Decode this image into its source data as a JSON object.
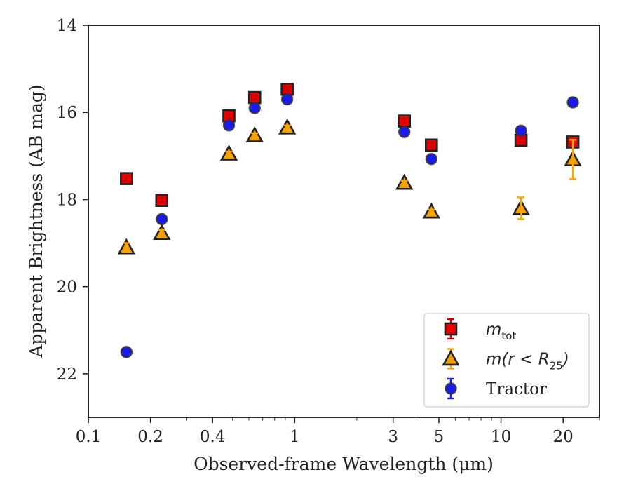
{
  "chart_data": {
    "type": "scatter",
    "title": "",
    "xlabel": "Observed-frame Wavelength (μm)",
    "ylabel": "Apparent Brightness (AB mag)",
    "xscale": "log",
    "xlim": [
      0.1,
      30
    ],
    "ylim": [
      23,
      14
    ],
    "y_inverted": true,
    "x_ticks": [
      {
        "value": 0.1,
        "label": "0.1"
      },
      {
        "value": 0.2,
        "label": "0.2"
      },
      {
        "value": 0.4,
        "label": "0.4"
      },
      {
        "value": 1,
        "label": "1"
      },
      {
        "value": 3,
        "label": "3"
      },
      {
        "value": 5,
        "label": "5"
      },
      {
        "value": 10,
        "label": "10"
      },
      {
        "value": 20,
        "label": "20"
      }
    ],
    "y_ticks": [
      {
        "value": 14,
        "label": "14"
      },
      {
        "value": 16,
        "label": "16"
      },
      {
        "value": 18,
        "label": "18"
      },
      {
        "value": 20,
        "label": "20"
      },
      {
        "value": 22,
        "label": "22"
      }
    ],
    "grid": false,
    "legend_position": "lower-right",
    "series": [
      {
        "name": "m_tot",
        "marker": "square",
        "color": "#ee0000",
        "edgecolor": "#222222",
        "errcolor": "#cc0000",
        "points": [
          {
            "x": 0.153,
            "y": 17.52,
            "err": 0.05
          },
          {
            "x": 0.227,
            "y": 18.02,
            "err": 0.05
          },
          {
            "x": 0.48,
            "y": 16.08,
            "err": 0.05
          },
          {
            "x": 0.64,
            "y": 15.66,
            "err": 0.05
          },
          {
            "x": 0.92,
            "y": 15.47,
            "err": 0.05
          },
          {
            "x": 3.4,
            "y": 16.2,
            "err": 0.05
          },
          {
            "x": 4.6,
            "y": 16.75,
            "err": 0.05
          },
          {
            "x": 12.5,
            "y": 16.64,
            "err": 0.05
          },
          {
            "x": 22.3,
            "y": 16.68,
            "err": 0.05
          }
        ]
      },
      {
        "name": "m(r < R_25)",
        "marker": "triangle",
        "color": "#f0a000",
        "edgecolor": "#222222",
        "errcolor": "#ffa500",
        "points": [
          {
            "x": 0.153,
            "y": 19.1,
            "err": 0.1
          },
          {
            "x": 0.227,
            "y": 18.77,
            "err": 0.07
          },
          {
            "x": 0.48,
            "y": 16.95,
            "err": 0.05
          },
          {
            "x": 0.64,
            "y": 16.53,
            "err": 0.05
          },
          {
            "x": 0.92,
            "y": 16.35,
            "err": 0.05
          },
          {
            "x": 3.4,
            "y": 17.62,
            "err": 0.05
          },
          {
            "x": 4.6,
            "y": 18.28,
            "err": 0.05
          },
          {
            "x": 12.5,
            "y": 18.2,
            "err": 0.25
          },
          {
            "x": 22.3,
            "y": 17.08,
            "err": 0.45
          }
        ]
      },
      {
        "name": "Tractor",
        "marker": "circle",
        "color": "#1a1aee",
        "edgecolor": "#333333",
        "errcolor": "#1a1aee",
        "points": [
          {
            "x": 0.153,
            "y": 21.5,
            "err": 0.05
          },
          {
            "x": 0.227,
            "y": 18.45,
            "err": 0.05
          },
          {
            "x": 0.48,
            "y": 16.3,
            "err": 0.05
          },
          {
            "x": 0.64,
            "y": 15.9,
            "err": 0.05
          },
          {
            "x": 0.92,
            "y": 15.7,
            "err": 0.05
          },
          {
            "x": 3.4,
            "y": 16.45,
            "err": 0.05
          },
          {
            "x": 4.6,
            "y": 17.07,
            "err": 0.05
          },
          {
            "x": 12.5,
            "y": 16.42,
            "err": 0.05
          },
          {
            "x": 22.3,
            "y": 15.77,
            "err": 0.05
          }
        ]
      }
    ],
    "legend": {
      "entries": [
        {
          "series": 0,
          "base": "m",
          "sub": "tot",
          "rest": ""
        },
        {
          "series": 1,
          "base": "m(r < R",
          "sub": "25",
          "rest": ")"
        },
        {
          "series": 2,
          "text": "Tractor"
        }
      ]
    }
  }
}
